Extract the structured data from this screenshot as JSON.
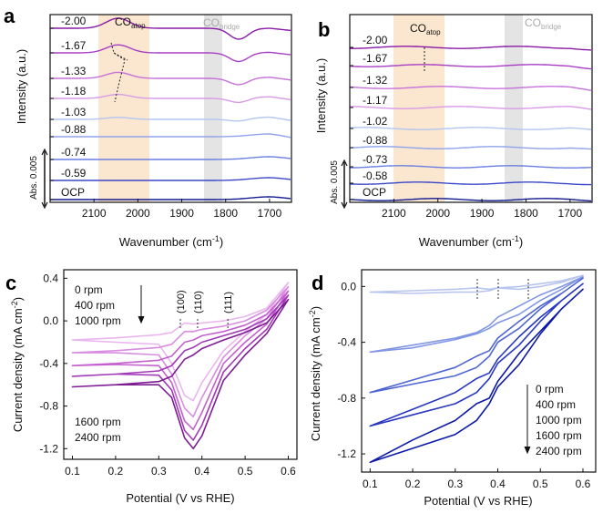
{
  "panels": {
    "a": {
      "letter": "a",
      "ylabel": "Intensity (a.u.)",
      "xlabel_main": "Wavenumber (cm",
      "xlabel_sup": "-1",
      "xlabel_close": ")",
      "band_atop_main": "CO",
      "band_atop_sub": "atop",
      "band_bridge_main": "CO",
      "band_bridge_sub": "bridge",
      "scale": "Abs. 0.005",
      "xticks": [
        "2100",
        "2000",
        "1900",
        "1800",
        "1700"
      ],
      "labels": [
        "-2.00",
        "-1.67",
        "-1.33",
        "-1.18",
        "-1.03",
        "-0.88",
        "-0.74",
        "-0.59",
        "OCP"
      ]
    },
    "b": {
      "letter": "b",
      "ylabel": "Intensity (a.u.)",
      "xlabel_main": "Wavenumber (cm",
      "xlabel_sup": "-1",
      "xlabel_close": ")",
      "band_atop_main": "CO",
      "band_atop_sub": "atop",
      "band_bridge_main": "CO",
      "band_bridge_sub": "bridge",
      "scale": "Abs. 0.005",
      "xticks": [
        "2100",
        "2000",
        "1900",
        "1800",
        "1700"
      ],
      "labels": [
        "-2.00",
        "-1.67",
        "-1.32",
        "-1.17",
        "-1.02",
        "-0.88",
        "-0.73",
        "-0.58",
        "OCP"
      ]
    },
    "c": {
      "letter": "c",
      "ylabel_main": "Current density (mA cm",
      "ylabel_sup": "-2",
      "ylabel_close": ")",
      "xlabel": "Potential (V vs RHE)",
      "xticks": [
        "0.1",
        "0.2",
        "0.3",
        "0.4",
        "0.5",
        "0.6"
      ],
      "yticks": [
        "0.4",
        "0.0",
        "-0.4",
        "-0.8",
        "-1.2"
      ],
      "legend_top": [
        "0 rpm",
        "400 rpm",
        "1000 rpm"
      ],
      "legend_bottom": [
        "1600 rpm",
        "2400 rpm"
      ],
      "facets": [
        "(100)",
        "(110)",
        "(111)"
      ]
    },
    "d": {
      "letter": "d",
      "ylabel_main": "Current density (mA cm",
      "ylabel_sup": "-2",
      "ylabel_close": ")",
      "xlabel": "Potential (V vs RHE)",
      "xticks": [
        "0.1",
        "0.2",
        "0.3",
        "0.4",
        "0.5",
        "0.6"
      ],
      "yticks": [
        "0.0",
        "-0.4",
        "-0.8",
        "-1.2"
      ],
      "legend": [
        "0 rpm",
        "400 rpm",
        "1000 rpm",
        "1600 rpm",
        "2400 rpm"
      ]
    }
  },
  "colors": {
    "a": [
      "#8a1aa8",
      "#a83ec4",
      "#c770da",
      "#d99ae6",
      "#b2c6f0",
      "#8fa3ea",
      "#6a7fe0",
      "#3a48c8",
      "#101a8e"
    ],
    "b": [
      "#8a1aa8",
      "#a83ec4",
      "#c770da",
      "#d99ae6",
      "#b2c6f0",
      "#8fa3ea",
      "#6a7fe0",
      "#3a48c8",
      "#101a8e"
    ],
    "c": [
      "#eab6ee",
      "#d88de0",
      "#c460cf",
      "#a238b8",
      "#7e1c96"
    ],
    "d": [
      "#b7c4ee",
      "#8197e4",
      "#4f66d2",
      "#2838c0",
      "#0c1aa6"
    ],
    "atop_band": "#fbe7cf",
    "bridge_band": "#e4e4e4"
  },
  "chart_data": [
    {
      "type": "line",
      "panel": "a",
      "title": "",
      "xlabel": "Wavenumber (cm-1)",
      "ylabel": "Intensity (a.u.)",
      "xlim": [
        2200,
        1650
      ],
      "x": [
        2200,
        2100,
        2000,
        1900,
        1800,
        1700,
        1650
      ],
      "bands": [
        {
          "name": "CO atop",
          "range": [
            2080,
            1980
          ]
        },
        {
          "name": "CO bridge",
          "range": [
            1840,
            1815
          ]
        }
      ],
      "series": [
        {
          "name": "-2.00",
          "peak_wavenumber": 2050,
          "trough_wavenumber": 1770
        },
        {
          "name": "-1.67",
          "peak_wavenumber": 2048,
          "trough_wavenumber": 1770
        },
        {
          "name": "-1.33",
          "peak_wavenumber": 2035
        },
        {
          "name": "-1.18",
          "peak_wavenumber": 2050
        },
        {
          "name": "-1.03",
          "peak_wavenumber": 2055
        },
        {
          "name": "-0.88"
        },
        {
          "name": "-0.74"
        },
        {
          "name": "-0.59"
        },
        {
          "name": "OCP"
        }
      ]
    },
    {
      "type": "line",
      "panel": "b",
      "title": "",
      "xlabel": "Wavenumber (cm-1)",
      "ylabel": "Intensity (a.u.)",
      "xlim": [
        2200,
        1650
      ],
      "x": [
        2200,
        2100,
        2000,
        1900,
        1800,
        1700,
        1650
      ],
      "series": [
        {
          "name": "-2.00"
        },
        {
          "name": "-1.67"
        },
        {
          "name": "-1.32"
        },
        {
          "name": "-1.17"
        },
        {
          "name": "-1.02"
        },
        {
          "name": "-0.88"
        },
        {
          "name": "-0.73"
        },
        {
          "name": "-0.58"
        },
        {
          "name": "OCP"
        }
      ]
    },
    {
      "type": "line",
      "panel": "c",
      "xlabel": "Potential (V vs RHE)",
      "ylabel": "Current density (mA cm-2)",
      "xlim": [
        0.08,
        0.62
      ],
      "ylim": [
        -1.3,
        0.48
      ],
      "x": [
        0.1,
        0.2,
        0.3,
        0.33,
        0.36,
        0.38,
        0.4,
        0.45,
        0.5,
        0.55,
        0.6
      ],
      "series": [
        {
          "name": "0 rpm",
          "forward": [
            -0.18,
            -0.16,
            -0.13,
            -0.11,
            -0.02,
            -0.03,
            -0.02,
            0.0,
            0.04,
            0.12,
            0.36
          ],
          "reverse": [
            0.36,
            0.06,
            -0.1,
            -0.28,
            -0.58,
            -0.75,
            -0.7,
            -0.4,
            -0.22,
            -0.2,
            -0.18
          ]
        },
        {
          "name": "400 rpm",
          "forward": [
            -0.3,
            -0.28,
            -0.25,
            -0.22,
            -0.1,
            -0.1,
            -0.08,
            -0.05,
            0.0,
            0.1,
            0.32
          ],
          "reverse": [
            0.32,
            0.02,
            -0.14,
            -0.34,
            -0.72,
            -0.9,
            -0.82,
            -0.5,
            -0.32,
            -0.3,
            -0.3
          ]
        },
        {
          "name": "1000 rpm",
          "forward": [
            -0.42,
            -0.4,
            -0.37,
            -0.33,
            -0.2,
            -0.18,
            -0.14,
            -0.1,
            -0.04,
            0.06,
            0.28
          ],
          "reverse": [
            0.28,
            -0.03,
            -0.2,
            -0.4,
            -0.86,
            -1.02,
            -0.94,
            -0.58,
            -0.42,
            -0.41,
            -0.42
          ]
        },
        {
          "name": "1600 rpm",
          "forward": [
            -0.52,
            -0.5,
            -0.47,
            -0.42,
            -0.28,
            -0.25,
            -0.2,
            -0.14,
            -0.08,
            0.02,
            0.24
          ],
          "reverse": [
            0.24,
            -0.08,
            -0.26,
            -0.48,
            -0.98,
            -1.12,
            -1.03,
            -0.65,
            -0.51,
            -0.5,
            -0.52
          ]
        },
        {
          "name": "2400 rpm",
          "forward": [
            -0.62,
            -0.6,
            -0.57,
            -0.52,
            -0.36,
            -0.32,
            -0.26,
            -0.18,
            -0.11,
            -0.02,
            0.2
          ],
          "reverse": [
            0.2,
            -0.12,
            -0.32,
            -0.56,
            -1.08,
            -1.2,
            -1.1,
            -0.72,
            -0.6,
            -0.6,
            -0.62
          ]
        }
      ],
      "annotations": [
        {
          "text": "(100)",
          "x": 0.35
        },
        {
          "text": "(110)",
          "x": 0.39
        },
        {
          "text": "(111)",
          "x": 0.46
        }
      ]
    },
    {
      "type": "line",
      "panel": "d",
      "xlabel": "Potential (V vs RHE)",
      "ylabel": "Current density (mA cm-2)",
      "xlim": [
        0.08,
        0.63
      ],
      "ylim": [
        -1.33,
        0.12
      ],
      "x": [
        0.1,
        0.2,
        0.3,
        0.35,
        0.38,
        0.4,
        0.45,
        0.5,
        0.55,
        0.6
      ],
      "series": [
        {
          "name": "0 rpm",
          "forward": [
            -0.04,
            -0.03,
            -0.02,
            -0.01,
            -0.02,
            -0.01,
            0.0,
            0.02,
            0.04,
            0.08
          ],
          "reverse": [
            0.08,
            0.03,
            0.0,
            -0.02,
            -0.01,
            -0.03,
            -0.04,
            -0.04,
            -0.05,
            -0.04
          ]
        },
        {
          "name": "400 rpm",
          "forward": [
            -0.47,
            -0.42,
            -0.37,
            -0.33,
            -0.28,
            -0.22,
            -0.14,
            -0.06,
            0.0,
            0.07
          ],
          "reverse": [
            0.07,
            -0.02,
            -0.1,
            -0.2,
            -0.26,
            -0.3,
            -0.34,
            -0.38,
            -0.44,
            -0.47
          ]
        },
        {
          "name": "1000 rpm",
          "forward": [
            -0.76,
            -0.67,
            -0.58,
            -0.5,
            -0.46,
            -0.37,
            -0.25,
            -0.14,
            -0.05,
            0.06
          ],
          "reverse": [
            0.06,
            -0.05,
            -0.16,
            -0.3,
            -0.4,
            -0.5,
            -0.58,
            -0.64,
            -0.7,
            -0.76
          ]
        },
        {
          "name": "1600 rpm",
          "forward": [
            -1.0,
            -0.88,
            -0.76,
            -0.66,
            -0.62,
            -0.52,
            -0.36,
            -0.22,
            -0.1,
            0.02
          ],
          "reverse": [
            0.02,
            -0.1,
            -0.25,
            -0.42,
            -0.55,
            -0.66,
            -0.76,
            -0.84,
            -0.92,
            -1.0
          ]
        },
        {
          "name": "2400 rpm",
          "forward": [
            -1.26,
            -1.1,
            -0.96,
            -0.84,
            -0.8,
            -0.68,
            -0.48,
            -0.32,
            -0.16,
            -0.02
          ],
          "reverse": [
            -0.02,
            -0.16,
            -0.34,
            -0.56,
            -0.72,
            -0.84,
            -0.96,
            -1.06,
            -1.16,
            -1.26
          ]
        }
      ]
    }
  ]
}
